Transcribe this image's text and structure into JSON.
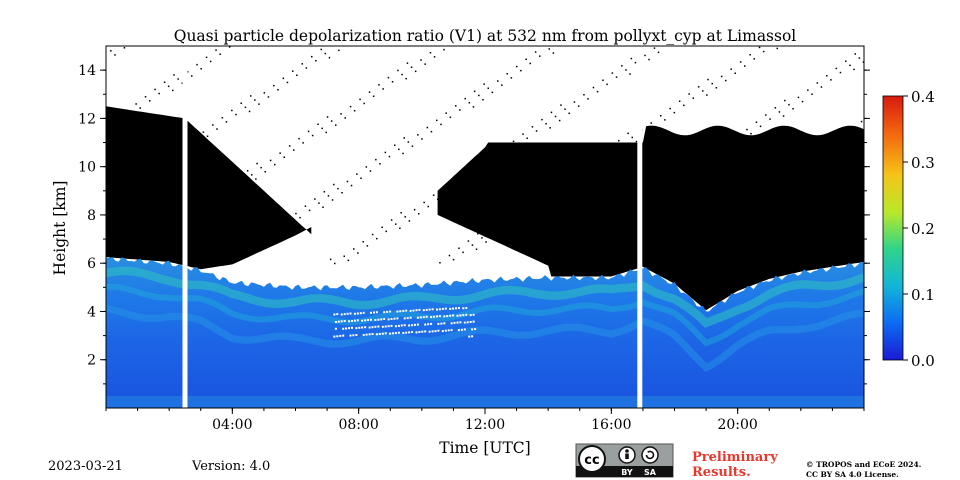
{
  "chart_data": {
    "type": "heatmap",
    "title": "Quasi particle depolarization ratio (V1) at 532 nm from pollyxt_cyp at Limassol",
    "xlabel": "Time [UTC]",
    "ylabel": "Height [km]",
    "xlim": [
      0,
      24
    ],
    "ylim": [
      0,
      15
    ],
    "x_ticks": [
      {
        "value": 4,
        "label": "04:00"
      },
      {
        "value": 8,
        "label": "08:00"
      },
      {
        "value": 12,
        "label": "12:00"
      },
      {
        "value": 16,
        "label": "16:00"
      },
      {
        "value": 20,
        "label": "20:00"
      }
    ],
    "y_ticks": [
      {
        "value": 2,
        "label": "2"
      },
      {
        "value": 4,
        "label": "4"
      },
      {
        "value": 6,
        "label": "6"
      },
      {
        "value": 8,
        "label": "8"
      },
      {
        "value": 10,
        "label": "10"
      },
      {
        "value": 12,
        "label": "12"
      },
      {
        "value": 14,
        "label": "14"
      }
    ],
    "colorbar": {
      "range": [
        0,
        0.4
      ],
      "ticks": [
        {
          "value": 0.0,
          "label": "0.0"
        },
        {
          "value": 0.1,
          "label": "0.1"
        },
        {
          "value": 0.2,
          "label": "0.2"
        },
        {
          "value": 0.3,
          "label": "0.3"
        },
        {
          "value": 0.4,
          "label": "0.4"
        }
      ],
      "colors": [
        "#1a1ad6",
        "#0d6bf2",
        "#13b5d8",
        "#2fd48a",
        "#b9e82a",
        "#f5c518",
        "#f56a10",
        "#d81a10"
      ]
    },
    "data_gaps_hours": [
      2.5,
      16.9
    ],
    "aerosol_layer_top_km": [
      [
        0,
        6.2
      ],
      [
        1,
        6.1
      ],
      [
        2,
        6.0
      ],
      [
        3,
        5.7
      ],
      [
        4,
        5.2
      ],
      [
        5,
        5.1
      ],
      [
        6,
        5.0
      ],
      [
        8,
        5.0
      ],
      [
        10,
        5.1
      ],
      [
        12,
        5.3
      ],
      [
        14,
        5.4
      ],
      [
        16,
        5.4
      ],
      [
        17,
        5.8
      ],
      [
        18,
        5.1
      ],
      [
        19,
        4.0
      ],
      [
        20,
        4.8
      ],
      [
        21,
        5.3
      ],
      [
        22,
        5.6
      ],
      [
        23,
        5.8
      ],
      [
        24,
        6.0
      ]
    ]
  },
  "footer": {
    "date": "2023-03-21",
    "version": "Version: 4.0",
    "preliminary_line1": "Preliminary",
    "preliminary_line2": "Results.",
    "copyright_line1": "© TROPOS and ECoE 2024.",
    "copyright_line2": "CC BY SA 4.0 License.",
    "cc_badge": {
      "by": "BY",
      "sa": "SA",
      "cc": "cc"
    }
  },
  "colors": {
    "prelim": "#e8382e",
    "cloud_black": "#000000",
    "badge_bg": "#9aa0a0"
  }
}
